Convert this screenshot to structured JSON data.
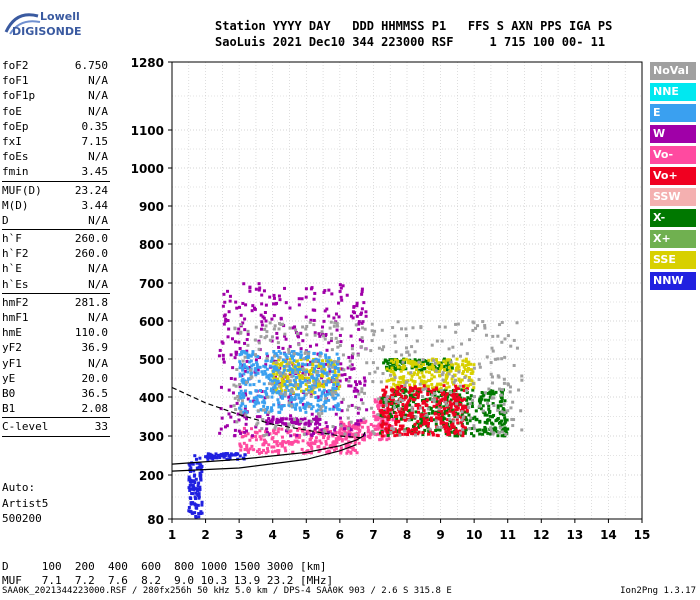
{
  "logo": {
    "line1": "Lowell",
    "line2": "DIGISONDE"
  },
  "header": {
    "line1": "Station YYYY DAY   DDD HHMMSS P1   FFS S AXN PPS IGA PS",
    "line2": "SaoLuis 2021 Dec10 344 223000 RSF     1 715 100 00- 11"
  },
  "params": [
    {
      "name": "foF2",
      "value": "6.750"
    },
    {
      "name": "foF1",
      "value": "N/A"
    },
    {
      "name": "foF1p",
      "value": "N/A"
    },
    {
      "name": "foE",
      "value": "N/A"
    },
    {
      "name": "foEp",
      "value": "0.35"
    },
    {
      "name": "fxI",
      "value": "7.15"
    },
    {
      "name": "foEs",
      "value": "N/A"
    },
    {
      "name": "fmin",
      "value": "3.45"
    },
    {
      "sep": true
    },
    {
      "name": "MUF(D)",
      "value": "23.24"
    },
    {
      "name": "M(D)",
      "value": "3.44"
    },
    {
      "name": "D",
      "value": "N/A"
    },
    {
      "sep": true
    },
    {
      "name": "h`F",
      "value": "260.0"
    },
    {
      "name": "h`F2",
      "value": "260.0"
    },
    {
      "name": "h`E",
      "value": "N/A"
    },
    {
      "name": "h`Es",
      "value": "N/A"
    },
    {
      "sep": true
    },
    {
      "name": "hmF2",
      "value": "281.8"
    },
    {
      "name": "hmF1",
      "value": "N/A"
    },
    {
      "name": "hmE",
      "value": "110.0"
    },
    {
      "name": "yF2",
      "value": "36.9"
    },
    {
      "name": "yF1",
      "value": "N/A"
    },
    {
      "name": "yE",
      "value": "20.0"
    },
    {
      "name": "B0",
      "value": "36.5"
    },
    {
      "name": "B1",
      "value": "2.08"
    },
    {
      "sep": true
    },
    {
      "name": "C-level",
      "value": "33"
    },
    {
      "sep": true
    }
  ],
  "auto": [
    "Auto:",
    "Artist5",
    "500200"
  ],
  "muf_table": {
    "line1": "D     100  200  400  600  800 1000 1500 3000 [km]",
    "line2": "MUF   7.1  7.2  7.6  8.2  9.0 10.3 13.9 23.2 [MHz]"
  },
  "footer": "SAA0K_2021344223000.RSF / 280fx256h 50 kHz 5.0 km / DPS-4 SAA0K 903 / 2.6 S 315.8 E",
  "version": "Ion2Png 1.3.17",
  "legend": [
    {
      "label": "NoVal",
      "color": "#a0a0a0"
    },
    {
      "label": "NNE",
      "color": "#00e8f0"
    },
    {
      "label": "E",
      "color": "#3aa0f0"
    },
    {
      "label": "W",
      "color": "#a000a8"
    },
    {
      "label": "Vo-",
      "color": "#ff4aa0"
    },
    {
      "label": "Vo+",
      "color": "#f00020"
    },
    {
      "label": "SSW",
      "color": "#f4b0b0"
    },
    {
      "label": "X-",
      "color": "#007800"
    },
    {
      "label": "X+",
      "color": "#70b050"
    },
    {
      "label": "SSE",
      "color": "#d8d000"
    },
    {
      "label": "NNW",
      "color": "#2020e0"
    }
  ],
  "chart_data": {
    "type": "scatter",
    "title": "",
    "xlabel": "",
    "ylabel": "",
    "xlim": [
      1,
      15
    ],
    "ylim": [
      80,
      1280
    ],
    "x_ticks": [
      1,
      2,
      3,
      4,
      5,
      6,
      7,
      8,
      9,
      10,
      11,
      12,
      13,
      14,
      15
    ],
    "y_ticks": [
      80,
      200,
      300,
      400,
      500,
      600,
      700,
      800,
      900,
      1000,
      1100,
      1280
    ],
    "y_scale": "nonlinear",
    "grid": true,
    "legend_position": "right",
    "series": [
      {
        "color": "#ff4aa0",
        "clusters": [
          {
            "x": [
              7.0,
              7.6
            ],
            "y": [
              290,
              400
            ]
          },
          {
            "x": [
              3.0,
              6.6
            ],
            "y": [
              255,
              320
            ]
          },
          {
            "x": [
              6.0,
              7.0
            ],
            "y": [
              290,
              340
            ]
          }
        ]
      },
      {
        "color": "#a000a8",
        "clusters": [
          {
            "x": [
              2.4,
              6.8
            ],
            "y": [
              300,
              700
            ]
          },
          {
            "x": [
              3.8,
              5.4
            ],
            "y": [
              330,
              345
            ]
          }
        ]
      },
      {
        "color": "#2020e0",
        "clusters": [
          {
            "x": [
              1.5,
              1.9
            ],
            "y": [
              80,
              250
            ]
          },
          {
            "x": [
              2.0,
              3.2
            ],
            "y": [
              240,
              255
            ]
          }
        ]
      },
      {
        "color": "#007800",
        "clusters": [
          {
            "x": [
              7.2,
              11.0
            ],
            "y": [
              300,
              420
            ]
          },
          {
            "x": [
              7.3,
              9.4
            ],
            "y": [
              470,
              500
            ]
          }
        ]
      },
      {
        "color": "#d8d000",
        "clusters": [
          {
            "x": [
              7.4,
              10.0
            ],
            "y": [
              420,
              500
            ]
          },
          {
            "x": [
              4.0,
              6.0
            ],
            "y": [
              410,
              500
            ]
          }
        ]
      },
      {
        "color": "#f00020",
        "clusters": [
          {
            "x": [
              7.2,
              9.8
            ],
            "y": [
              300,
              430
            ]
          }
        ]
      },
      {
        "color": "#3aa0f0",
        "clusters": [
          {
            "x": [
              3.0,
              6.0
            ],
            "y": [
              360,
              520
            ]
          }
        ]
      },
      {
        "color": "#a0a0a0",
        "clusters": [
          {
            "x": [
              2.8,
              11.5
            ],
            "y": [
              300,
              600
            ]
          }
        ]
      }
    ],
    "profile_curve": {
      "x": [
        1.0,
        3.0,
        5.0,
        6.0,
        6.5,
        6.7,
        6.75
      ],
      "y": [
        228,
        240,
        258,
        275,
        290,
        300,
        310
      ]
    },
    "profile_curve2": {
      "x": [
        1.0,
        3.0,
        5.0,
        6.0,
        6.5
      ],
      "y": [
        210,
        218,
        240,
        262,
        278
      ]
    },
    "dashed_curve": {
      "x": [
        1.0,
        2.0,
        3.0,
        4.0,
        5.0,
        6.0,
        6.7
      ],
      "y": [
        425,
        385,
        355,
        330,
        315,
        300,
        295
      ]
    }
  }
}
